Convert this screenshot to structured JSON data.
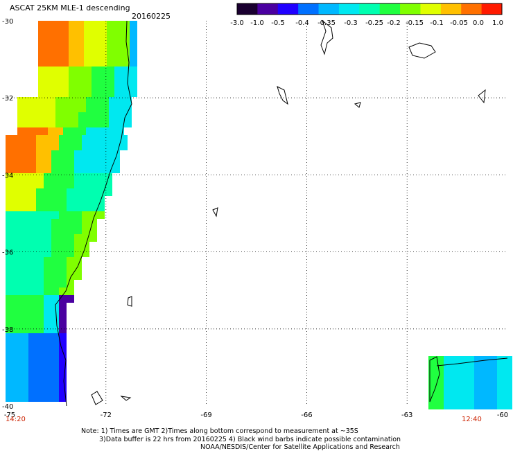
{
  "header": {
    "title": "ASCAT 25KM MLE-1 descending",
    "date": "20160225"
  },
  "colorbar": {
    "labels": [
      "-3.0",
      "-1.0",
      "-0.5",
      "-0.4",
      "-0.35",
      "-0.3",
      "-0.25",
      "-0.2",
      "-0.15",
      "-0.1",
      "-0.05",
      "0.0",
      "1.0"
    ],
    "colors": [
      "#1a0030",
      "#4a00a0",
      "#2000ff",
      "#0070ff",
      "#00b8ff",
      "#00e8f0",
      "#00ffb0",
      "#20ff40",
      "#80ff00",
      "#e0ff00",
      "#ffc000",
      "#ff7000",
      "#ff1a00"
    ]
  },
  "axes": {
    "lat_labels": [
      "-30",
      "-32",
      "-34",
      "-36",
      "-38",
      "-40"
    ],
    "lon_labels": [
      "-75",
      "-72",
      "-69",
      "-66",
      "-63",
      "-60"
    ]
  },
  "times": {
    "left": "14:20",
    "right": "12:40"
  },
  "notes": {
    "line1": "Note: 1) Times are GMT 2)Times along bottom correspond to measurement at ~35S",
    "line2": "3)Data buffer is 22 hrs from 20160225 4) Black wind barbs indicate possible contamination",
    "line3": "NOAA/NESDIS/Center for Satellite Applications and Research"
  }
}
